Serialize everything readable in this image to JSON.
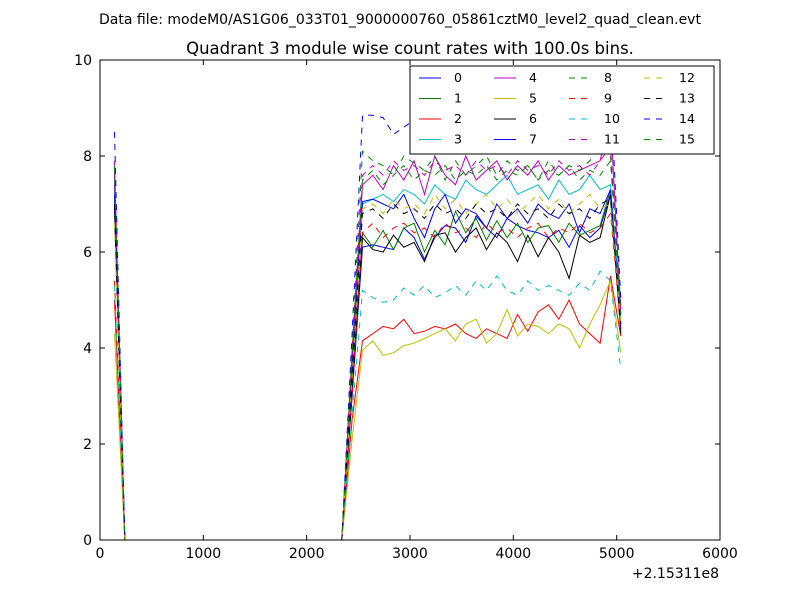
{
  "header": {
    "datafile": "Data file: modeM0/AS1G06_033T01_9000000760_05861cztM0_level2_quad_clean.evt"
  },
  "chart_data": {
    "type": "line",
    "title": "Quadrant 3 module wise count rates with 100.0s bins.",
    "xlabel": "",
    "ylabel": "",
    "x_offset_label": "+2.15311e8",
    "xlim": [
      0,
      6000
    ],
    "ylim": [
      0,
      10
    ],
    "xticks": [
      0,
      1000,
      2000,
      3000,
      4000,
      5000,
      6000
    ],
    "yticks": [
      0,
      2,
      4,
      6,
      8,
      10
    ],
    "grid": false,
    "legend_position": "top-right",
    "x": [
      140,
      240,
      340,
      440,
      540,
      640,
      740,
      840,
      940,
      1040,
      1140,
      1240,
      1340,
      1440,
      1540,
      1640,
      1740,
      1840,
      1940,
      2040,
      2140,
      2240,
      2340,
      2440,
      2540,
      2640,
      2740,
      2840,
      2940,
      3040,
      3140,
      3240,
      3340,
      3440,
      3540,
      3640,
      3740,
      3840,
      3940,
      4040,
      4140,
      4240,
      4340,
      4440,
      4540,
      4640,
      4740,
      4840,
      4940,
      5040
    ],
    "series": [
      {
        "name": "0",
        "color": "#0000ff",
        "dash": "solid",
        "values": [
          7.4,
          0,
          0,
          0,
          0,
          0,
          0,
          0,
          0,
          0,
          0,
          0,
          0,
          0,
          0,
          0,
          0,
          0,
          0,
          0,
          0,
          0,
          0,
          3.0,
          6.1,
          6.15,
          6.1,
          6.05,
          6.5,
          6.3,
          5.85,
          6.3,
          6.55,
          6.5,
          6.2,
          6.75,
          6.5,
          6.3,
          6.7,
          6.55,
          6.45,
          6.4,
          6.3,
          6.45,
          6.1,
          6.55,
          6.3,
          6.5,
          7.2,
          4.5
        ]
      },
      {
        "name": "1",
        "color": "#008000",
        "dash": "solid",
        "values": [
          7.0,
          0,
          0,
          0,
          0,
          0,
          0,
          0,
          0,
          0,
          0,
          0,
          0,
          0,
          0,
          0,
          0,
          0,
          0,
          0,
          0,
          0,
          0,
          3.2,
          6.4,
          6.1,
          6.45,
          6.05,
          6.5,
          6.6,
          6.0,
          6.45,
          6.15,
          6.85,
          6.4,
          6.7,
          6.25,
          6.65,
          6.3,
          6.6,
          6.2,
          6.5,
          6.55,
          6.2,
          6.6,
          6.35,
          6.45,
          6.55,
          7.3,
          4.8
        ]
      },
      {
        "name": "2",
        "color": "#ff0000",
        "dash": "solid",
        "values": [
          5.0,
          0,
          0,
          0,
          0,
          0,
          0,
          0,
          0,
          0,
          0,
          0,
          0,
          0,
          0,
          0,
          0,
          0,
          0,
          0,
          0,
          0,
          0,
          2.5,
          4.15,
          4.3,
          4.45,
          4.4,
          4.6,
          4.3,
          4.35,
          4.45,
          4.4,
          4.5,
          4.3,
          4.2,
          4.4,
          4.3,
          4.2,
          4.7,
          4.35,
          4.75,
          4.9,
          4.6,
          5.0,
          4.5,
          4.3,
          4.1,
          5.5,
          4.25
        ]
      },
      {
        "name": "3",
        "color": "#00bfbf",
        "dash": "solid",
        "values": [
          7.1,
          0,
          0,
          0,
          0,
          0,
          0,
          0,
          0,
          0,
          0,
          0,
          0,
          0,
          0,
          0,
          0,
          0,
          0,
          0,
          0,
          0,
          0,
          3.6,
          7.0,
          7.1,
          7.2,
          7.05,
          7.3,
          7.2,
          7.0,
          7.4,
          7.2,
          7.1,
          7.5,
          7.3,
          7.2,
          7.4,
          7.6,
          7.2,
          7.3,
          7.4,
          7.1,
          7.5,
          7.2,
          7.3,
          7.6,
          7.3,
          7.4,
          4.6
        ]
      },
      {
        "name": "4",
        "color": "#bf00bf",
        "dash": "solid",
        "values": [
          7.6,
          0,
          0,
          0,
          0,
          0,
          0,
          0,
          0,
          0,
          0,
          0,
          0,
          0,
          0,
          0,
          0,
          0,
          0,
          0,
          0,
          0,
          0,
          3.8,
          7.4,
          7.6,
          7.3,
          7.8,
          7.5,
          7.9,
          7.2,
          8.0,
          7.6,
          7.4,
          8.0,
          7.5,
          7.7,
          7.9,
          7.5,
          7.8,
          7.6,
          7.9,
          7.5,
          7.8,
          7.6,
          7.7,
          7.8,
          7.9,
          8.8,
          4.7
        ]
      },
      {
        "name": "5",
        "color": "#bfbf00",
        "dash": "solid",
        "values": [
          4.3,
          0,
          0,
          0,
          0,
          0,
          0,
          0,
          0,
          0,
          0,
          0,
          0,
          0,
          0,
          0,
          0,
          0,
          0,
          0,
          0,
          0,
          0,
          2.1,
          3.95,
          4.15,
          3.85,
          3.9,
          4.05,
          4.1,
          4.2,
          4.3,
          4.4,
          4.15,
          4.5,
          4.6,
          4.1,
          4.3,
          4.8,
          4.25,
          4.5,
          4.45,
          4.3,
          4.5,
          4.4,
          4.0,
          4.5,
          4.9,
          5.4,
          3.9
        ]
      },
      {
        "name": "6",
        "color": "#000000",
        "dash": "solid",
        "values": [
          6.9,
          0,
          0,
          0,
          0,
          0,
          0,
          0,
          0,
          0,
          0,
          0,
          0,
          0,
          0,
          0,
          0,
          0,
          0,
          0,
          0,
          0,
          0,
          3.1,
          6.3,
          6.05,
          6.0,
          6.35,
          6.1,
          6.2,
          5.8,
          6.35,
          6.4,
          6.0,
          6.3,
          6.5,
          6.05,
          6.4,
          6.2,
          5.8,
          6.35,
          5.9,
          6.3,
          6.0,
          5.45,
          6.35,
          6.2,
          6.3,
          7.2,
          4.3
        ]
      },
      {
        "name": "7",
        "color": "#0000ff",
        "dash": "solid",
        "values": [
          7.2,
          0,
          0,
          0,
          0,
          0,
          0,
          0,
          0,
          0,
          0,
          0,
          0,
          0,
          0,
          0,
          0,
          0,
          0,
          0,
          0,
          0,
          0,
          3.5,
          7.05,
          7.1,
          7.0,
          6.9,
          7.2,
          6.7,
          6.3,
          6.9,
          7.2,
          6.6,
          6.9,
          6.8,
          6.5,
          7.0,
          6.7,
          6.9,
          6.6,
          7.0,
          6.8,
          6.7,
          7.0,
          6.4,
          6.9,
          6.8,
          7.3,
          4.4
        ]
      },
      {
        "name": "8",
        "color": "#008000",
        "dash": "dashed",
        "values": [
          7.7,
          0,
          0,
          0,
          0,
          0,
          0,
          0,
          0,
          0,
          0,
          0,
          0,
          0,
          0,
          0,
          0,
          0,
          0,
          0,
          0,
          0,
          0,
          4.0,
          8.1,
          7.9,
          7.8,
          7.6,
          8.0,
          7.85,
          7.7,
          8.0,
          7.5,
          7.9,
          7.6,
          7.8,
          8.0,
          7.6,
          7.9,
          7.7,
          7.8,
          7.5,
          7.9,
          7.6,
          7.8,
          7.7,
          7.9,
          8.2,
          8.0,
          4.9
        ]
      },
      {
        "name": "9",
        "color": "#ff0000",
        "dash": "dashed",
        "values": [
          5.4,
          0,
          0,
          0,
          0,
          0,
          0,
          0,
          0,
          0,
          0,
          0,
          0,
          0,
          0,
          0,
          0,
          0,
          0,
          0,
          0,
          0,
          0,
          3.0,
          6.4,
          6.6,
          6.3,
          6.5,
          6.6,
          6.4,
          6.5,
          6.3,
          6.6,
          6.4,
          6.5,
          6.3,
          6.6,
          6.4,
          6.5,
          6.3,
          6.5,
          6.6,
          6.3,
          6.5,
          6.4,
          6.6,
          6.4,
          6.5,
          6.8,
          4.4
        ]
      },
      {
        "name": "10",
        "color": "#00bfbf",
        "dash": "dashed",
        "values": [
          5.3,
          0,
          0,
          0,
          0,
          0,
          0,
          0,
          0,
          0,
          0,
          0,
          0,
          0,
          0,
          0,
          0,
          0,
          0,
          0,
          0,
          0,
          0,
          2.6,
          5.2,
          5.05,
          4.95,
          5.0,
          5.25,
          5.1,
          5.3,
          5.05,
          5.15,
          5.3,
          5.1,
          5.4,
          5.2,
          5.5,
          5.2,
          5.1,
          5.4,
          5.2,
          5.3,
          5.2,
          5.1,
          5.35,
          5.2,
          5.6,
          5.4,
          3.55
        ]
      },
      {
        "name": "11",
        "color": "#bf00bf",
        "dash": "dashed",
        "values": [
          7.9,
          0,
          0,
          0,
          0,
          0,
          0,
          0,
          0,
          0,
          0,
          0,
          0,
          0,
          0,
          0,
          0,
          0,
          0,
          0,
          0,
          0,
          0,
          3.9,
          7.6,
          7.8,
          7.6,
          7.9,
          7.7,
          7.8,
          7.6,
          7.9,
          7.7,
          7.8,
          7.6,
          7.9,
          7.7,
          7.8,
          7.6,
          7.9,
          7.7,
          7.8,
          7.6,
          7.9,
          7.7,
          7.8,
          7.6,
          7.9,
          8.2,
          4.8
        ]
      },
      {
        "name": "12",
        "color": "#bfbf00",
        "dash": "dashed",
        "values": [
          6.6,
          0,
          0,
          0,
          0,
          0,
          0,
          0,
          0,
          0,
          0,
          0,
          0,
          0,
          0,
          0,
          0,
          0,
          0,
          0,
          0,
          0,
          0,
          3.4,
          6.9,
          7.0,
          6.8,
          7.1,
          6.9,
          7.0,
          6.8,
          7.2,
          6.9,
          7.1,
          6.8,
          7.0,
          7.2,
          6.9,
          7.1,
          6.8,
          7.0,
          7.2,
          6.9,
          7.1,
          6.8,
          7.0,
          7.2,
          6.9,
          7.0,
          4.5
        ]
      },
      {
        "name": "13",
        "color": "#000000",
        "dash": "dashed",
        "values": [
          7.0,
          0,
          0,
          0,
          0,
          0,
          0,
          0,
          0,
          0,
          0,
          0,
          0,
          0,
          0,
          0,
          0,
          0,
          0,
          0,
          0,
          0,
          0,
          3.5,
          6.8,
          6.9,
          6.7,
          7.0,
          6.8,
          6.9,
          6.7,
          7.0,
          6.8,
          6.9,
          6.7,
          7.0,
          6.8,
          6.9,
          6.7,
          7.0,
          6.8,
          6.9,
          6.7,
          7.0,
          6.8,
          6.9,
          6.7,
          7.0,
          7.1,
          4.5
        ]
      },
      {
        "name": "14",
        "color": "#0000ff",
        "dash": "dashed",
        "values": [
          8.5,
          0,
          0,
          0,
          0,
          0,
          0,
          0,
          0,
          0,
          0,
          0,
          0,
          0,
          0,
          0,
          0,
          0,
          0,
          0,
          0,
          0,
          0,
          4.3,
          8.85,
          8.85,
          8.8,
          8.45,
          8.6,
          8.75,
          8.85,
          8.9,
          8.65,
          8.8,
          8.95,
          8.7,
          8.8,
          9.0,
          8.75,
          8.9,
          8.6,
          8.85,
          9.0,
          8.7,
          8.9,
          8.8,
          9.0,
          9.2,
          9.4,
          5.0
        ]
      },
      {
        "name": "15",
        "color": "#008000",
        "dash": "dashed",
        "values": [
          7.8,
          0,
          0,
          0,
          0,
          0,
          0,
          0,
          0,
          0,
          0,
          0,
          0,
          0,
          0,
          0,
          0,
          0,
          0,
          0,
          0,
          0,
          0,
          3.9,
          7.5,
          7.7,
          7.4,
          7.6,
          7.8,
          7.5,
          7.7,
          7.6,
          7.8,
          7.5,
          7.7,
          7.6,
          7.8,
          7.5,
          7.7,
          7.6,
          7.8,
          7.5,
          7.7,
          7.6,
          7.8,
          7.5,
          7.7,
          7.6,
          7.9,
          4.7
        ]
      }
    ]
  }
}
